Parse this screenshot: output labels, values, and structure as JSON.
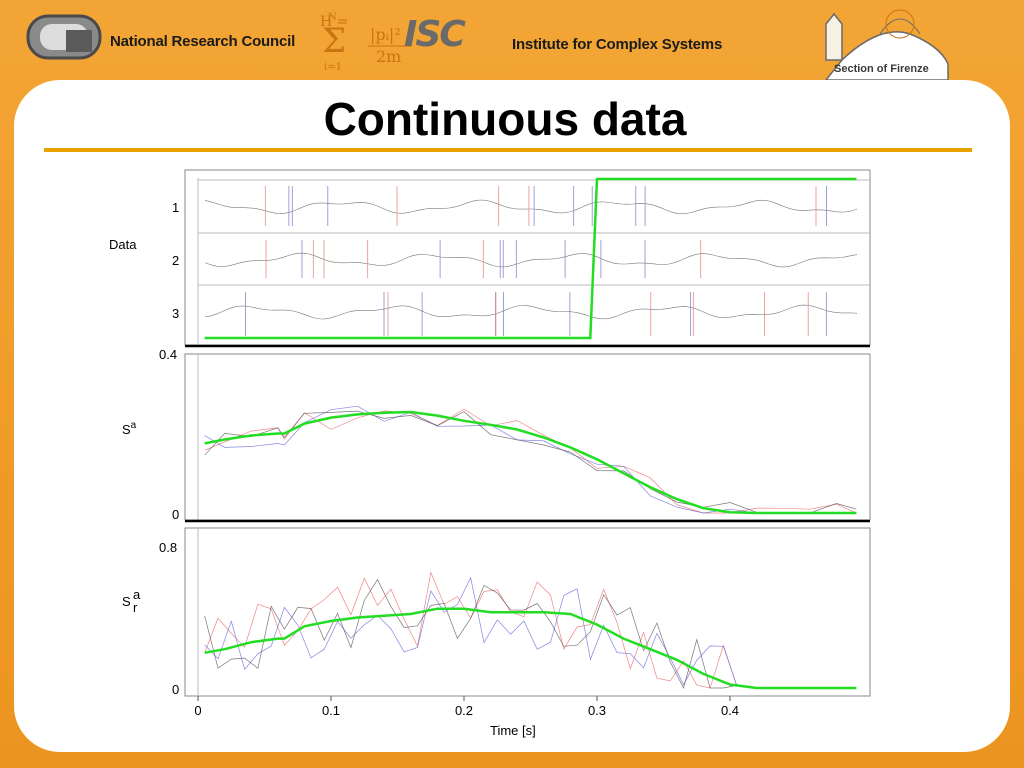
{
  "header": {
    "org_left": "National Research Council",
    "org_right": "Institute for Complex Systems",
    "logo_isc": "ISC",
    "section": "Section of Firenze"
  },
  "title": "Continuous data",
  "chart_data": [
    {
      "type": "line",
      "panel": "data",
      "ylabel": "Data",
      "tick_labels": [
        "1",
        "2",
        "3"
      ],
      "xlim": [
        0,
        0.5
      ],
      "series": [
        {
          "values_x": [
            0.005,
            0.295,
            0.3,
            0.495
          ],
          "values_y": [
            0,
            0,
            1,
            1
          ],
          "color": "#22dd22"
        }
      ]
    },
    {
      "type": "line",
      "panel": "Sa",
      "ylabel": "S",
      "ylabel_sup": "a",
      "ylim": [
        0,
        0.4
      ],
      "yticks": [
        "0",
        "0.4"
      ],
      "xlim": [
        0,
        0.5
      ],
      "series": [
        {
          "color": "#22dd22",
          "x": [
            0.005,
            0.02,
            0.04,
            0.06,
            0.065,
            0.08,
            0.1,
            0.12,
            0.14,
            0.16,
            0.18,
            0.2,
            0.22,
            0.24,
            0.26,
            0.28,
            0.3,
            0.32,
            0.34,
            0.36,
            0.38,
            0.4,
            0.42,
            0.44,
            0.46,
            0.48,
            0.495
          ],
          "y": [
            0.175,
            0.185,
            0.195,
            0.2,
            0.2,
            0.225,
            0.24,
            0.248,
            0.252,
            0.254,
            0.245,
            0.232,
            0.222,
            0.21,
            0.19,
            0.165,
            0.135,
            0.1,
            0.065,
            0.035,
            0.012,
            0.002,
            0,
            0,
            0,
            0,
            0
          ]
        }
      ]
    },
    {
      "type": "line",
      "panel": "Sra",
      "ylabel": "S",
      "ylabel_sup": "a",
      "ylabel_sub": "r",
      "ylim": [
        0,
        0.8
      ],
      "yticks": [
        "0",
        "0.8"
      ],
      "xlim": [
        0,
        0.5
      ],
      "series": [
        {
          "color": "#22dd22",
          "x": [
            0.005,
            0.02,
            0.04,
            0.06,
            0.065,
            0.08,
            0.1,
            0.12,
            0.14,
            0.16,
            0.18,
            0.2,
            0.22,
            0.24,
            0.26,
            0.28,
            0.3,
            0.32,
            0.34,
            0.36,
            0.38,
            0.4,
            0.42,
            0.44,
            0.46,
            0.48,
            0.495
          ],
          "y": [
            0.2,
            0.22,
            0.26,
            0.28,
            0.28,
            0.35,
            0.38,
            0.4,
            0.41,
            0.42,
            0.45,
            0.45,
            0.43,
            0.43,
            0.43,
            0.42,
            0.36,
            0.28,
            0.22,
            0.16,
            0.08,
            0.02,
            0,
            0,
            0,
            0,
            0
          ]
        }
      ]
    }
  ],
  "xaxis": {
    "label": "Time  [s]",
    "ticks": [
      "0",
      "0.1",
      "0.2",
      "0.3",
      "0.4"
    ],
    "tick_values": [
      0,
      0.1,
      0.2,
      0.3,
      0.4
    ]
  }
}
